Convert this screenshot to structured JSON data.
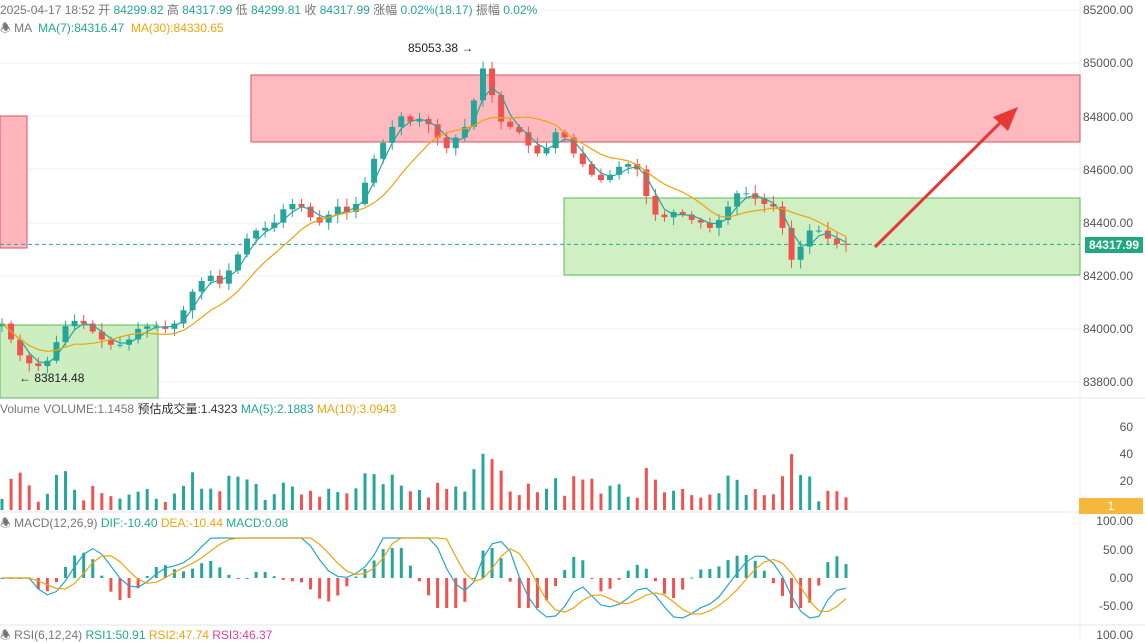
{
  "header": {
    "datetime": "2025-04-17 18:52",
    "open_label": "开",
    "open_value": "84299.82",
    "high_label": "高",
    "high_value": "84317.99",
    "low_label": "低",
    "low_value": "84299.81",
    "close_label": "收",
    "close_value": "84317.99",
    "change_label": "涨幅",
    "change_value": "0.02%(18.17)",
    "amplitude_label": "振幅",
    "amplitude_value": "0.02%"
  },
  "ma_legend": {
    "title": "MA",
    "ma7": "MA(7):84316.47",
    "ma30": "MA(30):84330.65"
  },
  "price_axis": {
    "ticks": [
      "85200.00",
      "85000.00",
      "84800.00",
      "84600.00",
      "84400.00",
      "84200.00",
      "84000.00",
      "83800.00"
    ],
    "current_price": "84317.99"
  },
  "annotations": {
    "high_label": "85053.38",
    "low_label": "83814.48"
  },
  "volume_legend": {
    "title": "Volume",
    "volume": "VOLUME:1.1458",
    "estimated": "预估成交量:1.4323",
    "ma5": "MA(5):2.1883",
    "ma10": "MA(10):3.0943"
  },
  "volume_axis": {
    "ticks": [
      "60",
      "40",
      "20"
    ],
    "current": "1"
  },
  "macd_legend": {
    "title": "MACD(12,26,9)",
    "dif": "DIF:-10.40",
    "dea": "DEA:-10.44",
    "macd": "MACD:0.08"
  },
  "macd_axis": {
    "ticks": [
      "100.00",
      "50.00",
      "0.00",
      "-50.00"
    ]
  },
  "rsi_legend": {
    "title": "RSI(6,12,24)",
    "rsi1": "RSI1:50.91",
    "rsi2": "RSI2:47.74",
    "rsi3": "RSI3:46.37"
  },
  "rsi_axis": {
    "ticks": [
      "100.00"
    ]
  },
  "colors": {
    "up": "#26a69a",
    "down": "#ef5350",
    "ma7": "#26a69a",
    "ma30": "#f0a30a",
    "resistance_zone": "#ffb6bd",
    "support_zone": "#cdeec0",
    "arrow": "#e53935"
  },
  "chart_data": {
    "type": "candlestick",
    "instrument_time": "2025-04-17 18:52",
    "price_range": [
      83700,
      85250
    ],
    "high": 85053.38,
    "low": 83814.48,
    "last": 84317.99,
    "close_series": [
      84020,
      83960,
      83900,
      83870,
      83860,
      83880,
      83950,
      84010,
      84030,
      84020,
      83990,
      83960,
      83940,
      83940,
      83960,
      84000,
      84010,
      84010,
      84000,
      84020,
      84070,
      84140,
      84180,
      84200,
      84170,
      84220,
      84280,
      84340,
      84370,
      84380,
      84400,
      84450,
      84470,
      84460,
      84420,
      84400,
      84430,
      84460,
      84440,
      84470,
      84550,
      84640,
      84700,
      84760,
      84800,
      84780,
      84790,
      84770,
      84720,
      84680,
      84720,
      84760,
      84860,
      84980,
      84880,
      84780,
      84760,
      84740,
      84690,
      84660,
      84680,
      84740,
      84720,
      84660,
      84620,
      84580,
      84560,
      84580,
      84610,
      84620,
      84600,
      84500,
      84430,
      84420,
      84440,
      84430,
      84410,
      84400,
      84380,
      84410,
      84460,
      84510,
      84510,
      84490,
      84470,
      84460,
      84380,
      84260,
      84310,
      84370,
      84370,
      84340,
      84320,
      84318
    ]
  }
}
